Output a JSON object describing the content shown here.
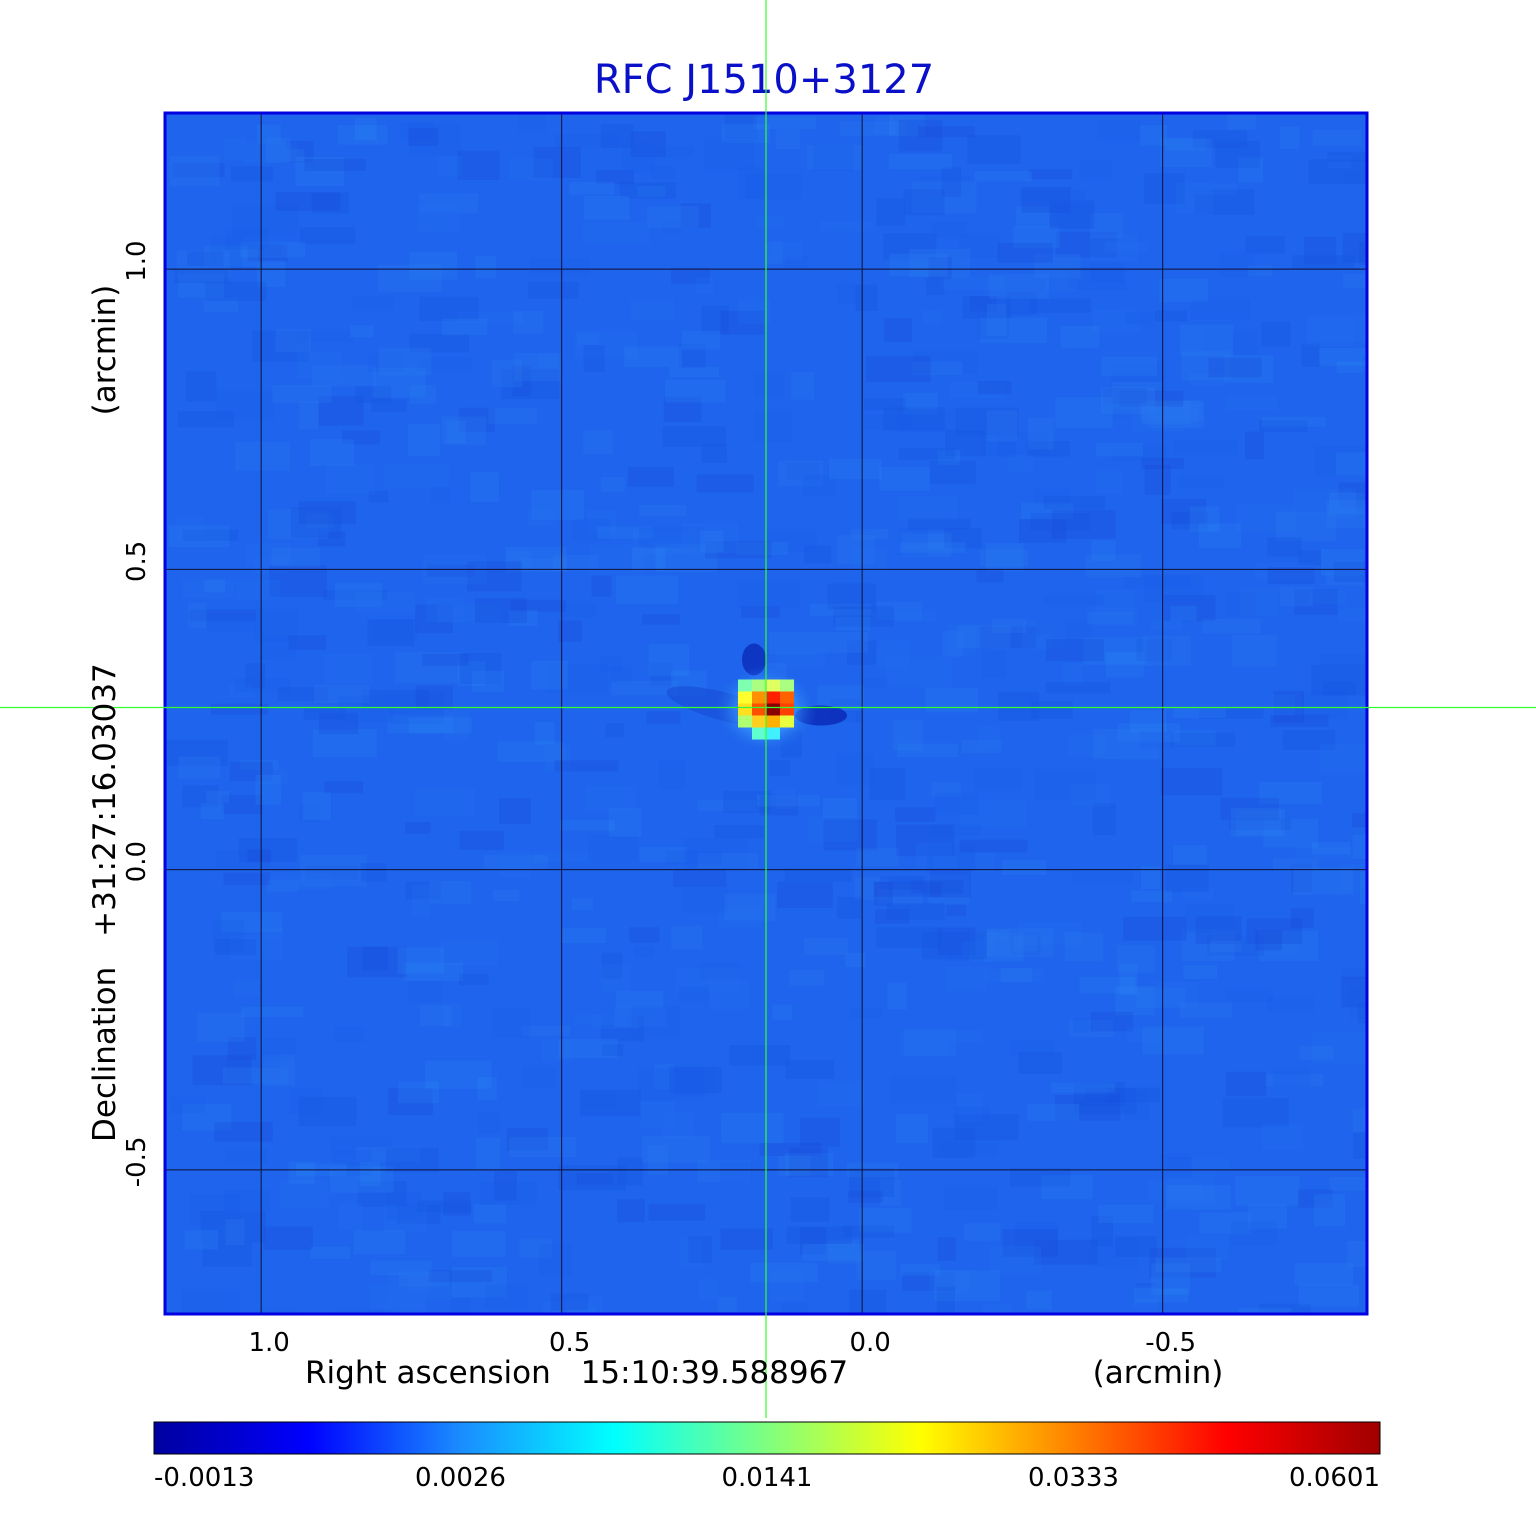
{
  "chart_data": {
    "type": "heatmap",
    "title": "RFC J1510+3127",
    "xlabel_name": "Right ascension",
    "xlabel_coord": "15:10:39.588967",
    "xlabel_unit": "(arcmin)",
    "ylabel_name": "Declination",
    "ylabel_coord": "+31:27:16.03037",
    "ylabel_unit": "(arcmin)",
    "xlim": [
      1.16,
      -0.84
    ],
    "ylim": [
      -0.74,
      1.26
    ],
    "x_ticks": [
      {
        "value": 1.0,
        "label": "1.0"
      },
      {
        "value": 0.5,
        "label": "0.5"
      },
      {
        "value": 0.0,
        "label": "0.0"
      },
      {
        "value": -0.5,
        "label": "-0.5"
      }
    ],
    "y_ticks": [
      {
        "value": 1.0,
        "label": "1.0"
      },
      {
        "value": 0.5,
        "label": "0.5"
      },
      {
        "value": 0.0,
        "label": "0.0"
      },
      {
        "value": -0.5,
        "label": "-0.5"
      }
    ],
    "grid": true,
    "crosshair": {
      "x": 0.16,
      "y": 0.27
    },
    "source": {
      "x": 0.16,
      "y": 0.27,
      "peak": 0.0601
    },
    "colorbar": {
      "ticks": [
        "-0.0013",
        "0.0026",
        "0.0141",
        "0.0333",
        "0.0601"
      ],
      "colors": [
        "#00009f",
        "#0000ff",
        "#1a8cff",
        "#00ffff",
        "#7fff7f",
        "#ffff00",
        "#ff8000",
        "#ff0000",
        "#a00000"
      ]
    },
    "colors": {
      "title": "#0a10c8",
      "background": "#1e64ec",
      "frame": "#0000e0",
      "grid": "#111133",
      "crosshair": "#33ff33"
    }
  }
}
